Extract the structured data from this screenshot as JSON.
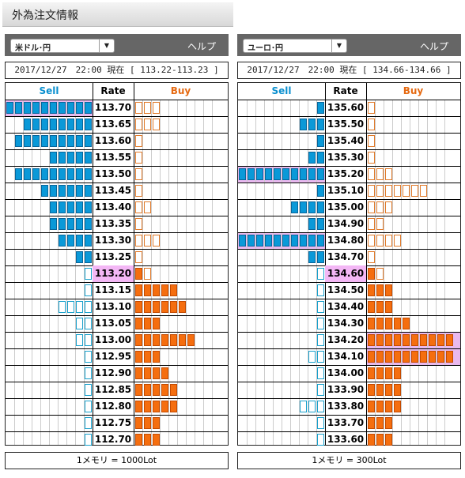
{
  "page_title": "外為注文情報",
  "colors": {
    "sell_filled": "#0a99d8",
    "sell_outline": "#17a0cc",
    "buy_filled": "#f56e0f",
    "buy_outline": "#e07a2a",
    "current_rate_bg": "#f3b7f5",
    "highlight": "#e9b9ef"
  },
  "panels": [
    {
      "pair": "米ドル･円",
      "help_label": "ヘルプ",
      "datetime": "2017/12/27　22:00 現在 [ 113.22-113.23 ]",
      "headers": {
        "sell": "Sell",
        "rate": "Rate",
        "buy": "Buy"
      },
      "footer": "1メモリ = 1000Lot",
      "current_rate": "113.20",
      "rows": [
        {
          "rate": "113.70",
          "sell": 10,
          "sell_type": "filled",
          "buy": 3,
          "buy_type": "outline",
          "hl": "sell"
        },
        {
          "rate": "113.65",
          "sell": 8,
          "sell_type": "filled",
          "buy": 3,
          "buy_type": "outline"
        },
        {
          "rate": "113.60",
          "sell": 9,
          "sell_type": "filled",
          "buy": 1,
          "buy_type": "outline"
        },
        {
          "rate": "113.55",
          "sell": 5,
          "sell_type": "filled",
          "buy": 1,
          "buy_type": "outline"
        },
        {
          "rate": "113.50",
          "sell": 9,
          "sell_type": "filled",
          "buy": 1,
          "buy_type": "outline"
        },
        {
          "rate": "113.45",
          "sell": 6,
          "sell_type": "filled",
          "buy": 1,
          "buy_type": "outline"
        },
        {
          "rate": "113.40",
          "sell": 5,
          "sell_type": "filled",
          "buy": 2,
          "buy_type": "outline"
        },
        {
          "rate": "113.35",
          "sell": 5,
          "sell_type": "filled",
          "buy": 1,
          "buy_type": "outline"
        },
        {
          "rate": "113.30",
          "sell": 4,
          "sell_type": "filled",
          "buy": 3,
          "buy_type": "outline"
        },
        {
          "rate": "113.25",
          "sell": 2,
          "sell_type": "filled",
          "buy": 1,
          "buy_type": "outline"
        },
        {
          "rate": "113.20",
          "sell": 1,
          "sell_type": "outline",
          "buy": 1,
          "buy_type": "filled",
          "buy2": 1
        },
        {
          "rate": "113.15",
          "sell": 1,
          "sell_type": "outline",
          "buy": 5,
          "buy_type": "filled"
        },
        {
          "rate": "113.10",
          "sell": 4,
          "sell_type": "outline",
          "buy": 6,
          "buy_type": "filled"
        },
        {
          "rate": "113.05",
          "sell": 2,
          "sell_type": "outline",
          "buy": 3,
          "buy_type": "filled"
        },
        {
          "rate": "113.00",
          "sell": 2,
          "sell_type": "outline",
          "buy": 7,
          "buy_type": "filled"
        },
        {
          "rate": "112.95",
          "sell": 1,
          "sell_type": "outline",
          "buy": 3,
          "buy_type": "filled"
        },
        {
          "rate": "112.90",
          "sell": 1,
          "sell_type": "outline",
          "buy": 4,
          "buy_type": "filled"
        },
        {
          "rate": "112.85",
          "sell": 1,
          "sell_type": "outline",
          "buy": 5,
          "buy_type": "filled"
        },
        {
          "rate": "112.80",
          "sell": 1,
          "sell_type": "outline",
          "buy": 5,
          "buy_type": "filled"
        },
        {
          "rate": "112.75",
          "sell": 1,
          "sell_type": "outline",
          "buy": 3,
          "buy_type": "filled"
        },
        {
          "rate": "112.70",
          "sell": 1,
          "sell_type": "outline",
          "buy": 3,
          "buy_type": "filled"
        }
      ]
    },
    {
      "pair": "ユーロ･円",
      "help_label": "ヘルプ",
      "datetime": "2017/12/27　22:00 現在 [ 134.66-134.66 ]",
      "headers": {
        "sell": "Sell",
        "rate": "Rate",
        "buy": "Buy"
      },
      "footer": "1メモリ = 300Lot",
      "current_rate": "134.60",
      "rows": [
        {
          "rate": "135.60",
          "sell": 1,
          "sell_type": "filled",
          "buy": 1,
          "buy_type": "outline"
        },
        {
          "rate": "135.50",
          "sell": 3,
          "sell_type": "filled",
          "buy": 1,
          "buy_type": "outline"
        },
        {
          "rate": "135.40",
          "sell": 1,
          "sell_type": "filled",
          "buy": 1,
          "buy_type": "outline"
        },
        {
          "rate": "135.30",
          "sell": 2,
          "sell_type": "filled",
          "buy": 1,
          "buy_type": "outline"
        },
        {
          "rate": "135.20",
          "sell": 10,
          "sell_type": "filled",
          "buy": 3,
          "buy_type": "outline",
          "hl": "sell"
        },
        {
          "rate": "135.10",
          "sell": 1,
          "sell_type": "filled",
          "buy": 7,
          "buy_type": "outline"
        },
        {
          "rate": "135.00",
          "sell": 4,
          "sell_type": "filled",
          "buy": 3,
          "buy_type": "outline"
        },
        {
          "rate": "134.90",
          "sell": 2,
          "sell_type": "filled",
          "buy": 2,
          "buy_type": "outline"
        },
        {
          "rate": "134.80",
          "sell": 10,
          "sell_type": "filled",
          "buy": 4,
          "buy_type": "outline",
          "hl": "sell"
        },
        {
          "rate": "134.70",
          "sell": 2,
          "sell_type": "filled",
          "buy": 1,
          "buy_type": "outline"
        },
        {
          "rate": "134.60",
          "sell": 1,
          "sell_type": "outline",
          "buy": 1,
          "buy_type": "filled",
          "buy2": 1
        },
        {
          "rate": "134.50",
          "sell": 1,
          "sell_type": "outline",
          "buy": 3,
          "buy_type": "filled"
        },
        {
          "rate": "134.40",
          "sell": 1,
          "sell_type": "outline",
          "buy": 3,
          "buy_type": "filled"
        },
        {
          "rate": "134.30",
          "sell": 1,
          "sell_type": "outline",
          "buy": 5,
          "buy_type": "filled"
        },
        {
          "rate": "134.20",
          "sell": 1,
          "sell_type": "outline",
          "buy": 10,
          "buy_type": "filled",
          "hl": "buy"
        },
        {
          "rate": "134.10",
          "sell": 2,
          "sell_type": "outline",
          "buy": 10,
          "buy_type": "filled",
          "hl": "buy"
        },
        {
          "rate": "134.00",
          "sell": 1,
          "sell_type": "outline",
          "buy": 4,
          "buy_type": "filled"
        },
        {
          "rate": "133.90",
          "sell": 1,
          "sell_type": "outline",
          "buy": 4,
          "buy_type": "filled"
        },
        {
          "rate": "133.80",
          "sell": 3,
          "sell_type": "outline",
          "buy": 4,
          "buy_type": "filled"
        },
        {
          "rate": "133.70",
          "sell": 1,
          "sell_type": "outline",
          "buy": 3,
          "buy_type": "filled"
        },
        {
          "rate": "133.60",
          "sell": 1,
          "sell_type": "outline",
          "buy": 3,
          "buy_type": "filled"
        }
      ]
    }
  ]
}
